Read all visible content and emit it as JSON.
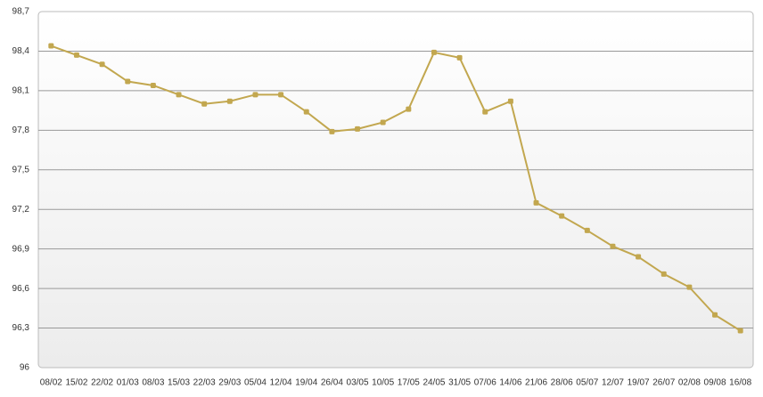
{
  "chart_data": {
    "type": "line",
    "categories": [
      "08/02",
      "15/02",
      "22/02",
      "01/03",
      "08/03",
      "15/03",
      "22/03",
      "29/03",
      "05/04",
      "12/04",
      "19/04",
      "26/04",
      "03/05",
      "10/05",
      "17/05",
      "24/05",
      "31/05",
      "07/06",
      "14/06",
      "21/06",
      "28/06",
      "05/07",
      "12/07",
      "19/07",
      "26/07",
      "02/08",
      "09/08",
      "16/08"
    ],
    "values": [
      98.44,
      98.37,
      98.3,
      98.17,
      98.14,
      98.07,
      98.0,
      98.02,
      98.07,
      98.07,
      97.94,
      97.79,
      97.81,
      97.86,
      97.96,
      98.39,
      98.35,
      97.94,
      98.02,
      97.25,
      97.15,
      97.04,
      96.92,
      96.84,
      96.71,
      96.61,
      96.4,
      96.28
    ],
    "color": "#c2a74f",
    "ylim": [
      96,
      98.7
    ],
    "yticks": [
      96,
      {
        "value": 96.3,
        "label": "96,3"
      },
      {
        "value": 96.6,
        "label": "96,6"
      },
      {
        "value": 96.9,
        "label": "96,9"
      },
      {
        "value": 97.2,
        "label": "97,2"
      },
      {
        "value": 97.5,
        "label": "97,5"
      },
      {
        "value": 97.8,
        "label": "97,8"
      },
      {
        "value": 98.1,
        "label": "98,1"
      },
      {
        "value": 98.4,
        "label": "98,4"
      },
      {
        "value": 98.7,
        "label": "98,7"
      }
    ],
    "grid": true
  }
}
